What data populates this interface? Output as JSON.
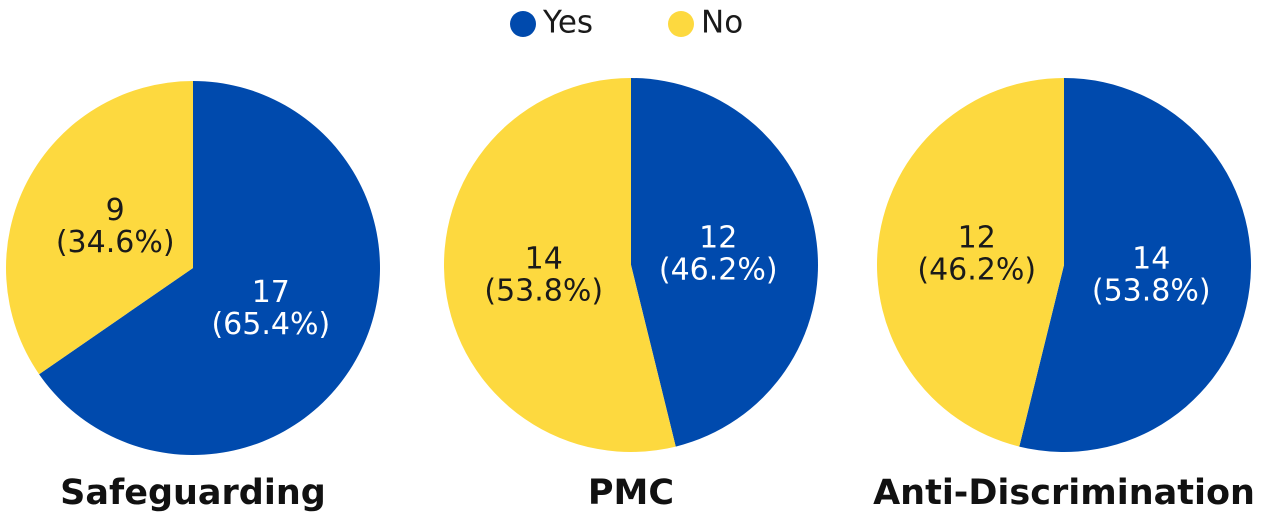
{
  "chart_data": [
    {
      "type": "pie",
      "title": "Safeguarding",
      "categories": [
        "Yes",
        "No"
      ],
      "values": [
        17,
        9
      ],
      "value_labels": [
        "17\n(65.4%)",
        "9\n(34.6%)"
      ],
      "colors": [
        "#004aad",
        "#fdd93f"
      ],
      "label_colors": [
        "#ffffff",
        "#1a1a1a"
      ],
      "legend": "top"
    },
    {
      "type": "pie",
      "title": "PMC",
      "categories": [
        "Yes",
        "No"
      ],
      "values": [
        12,
        14
      ],
      "value_labels": [
        "12\n(46.2%)",
        "14\n(53.8%)"
      ],
      "colors": [
        "#004aad",
        "#fdd93f"
      ],
      "label_colors": [
        "#ffffff",
        "#1a1a1a"
      ]
    },
    {
      "type": "pie",
      "title": "Anti-Discrimination",
      "categories": [
        "Yes",
        "No"
      ],
      "values": [
        14,
        12
      ],
      "value_labels": [
        "14\n(53.8%)",
        "12\n(46.2%)"
      ],
      "colors": [
        "#004aad",
        "#fdd93f"
      ],
      "label_colors": [
        "#ffffff",
        "#1a1a1a"
      ]
    }
  ]
}
